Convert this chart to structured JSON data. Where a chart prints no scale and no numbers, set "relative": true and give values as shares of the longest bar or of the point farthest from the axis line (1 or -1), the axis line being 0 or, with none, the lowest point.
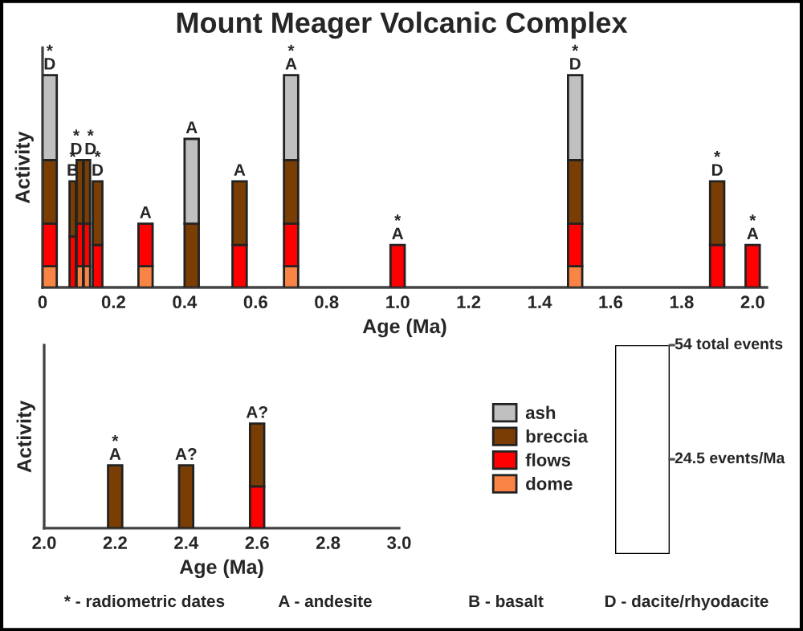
{
  "chart_data": [
    {
      "type": "bar",
      "title": "Mount Meager Volcanic Complex",
      "xlabel": "Age (Ma)",
      "ylabel": "Activity",
      "relative": true,
      "stacked": true,
      "tick_labels": "x",
      "grid": false,
      "legend": "bottom",
      "x": [
        0.02,
        0.085,
        0.105,
        0.125,
        0.155,
        0.29,
        0.42,
        0.555,
        0.7,
        1.0,
        1.5,
        1.9,
        2.0
      ],
      "xlim": [
        0,
        2.04
      ],
      "xticks": [
        {
          "value": 0,
          "label": "0"
        },
        0.2,
        0.4,
        0.6,
        0.8,
        {
          "value": 1,
          "label": "1.0"
        },
        1.2,
        1.4,
        1.6,
        1.8,
        {
          "value": 2,
          "label": "2.0"
        }
      ],
      "series": [
        {
          "name": "dome",
          "color": "#f98446",
          "values": [
            0.1,
            null,
            0.1,
            0.1,
            null,
            0.1,
            null,
            null,
            0.1,
            null,
            0.1,
            null,
            null
          ]
        },
        {
          "name": "flows",
          "color": "#ff0000",
          "values": [
            0.2,
            0.24,
            0.2,
            0.2,
            0.2,
            0.2,
            null,
            0.2,
            0.2,
            0.2,
            0.2,
            0.2,
            0.2
          ]
        },
        {
          "name": "breccia",
          "color": "#7a3e05",
          "values": [
            0.3,
            0.26,
            0.3,
            0.3,
            0.3,
            null,
            0.3,
            0.3,
            0.3,
            null,
            0.3,
            0.3,
            null
          ]
        },
        {
          "name": "ash",
          "color": "#c0c0c0",
          "values": [
            0.4,
            null,
            null,
            null,
            null,
            null,
            0.4,
            null,
            0.4,
            null,
            0.4,
            null,
            null
          ]
        }
      ],
      "annotations": [
        {
          "text": "*\nD",
          "x": 0.02,
          "y": 1.0
        },
        {
          "text": "*\nB",
          "x": 0.085,
          "y": 0.5
        },
        {
          "text": "*\nD",
          "x": 0.105,
          "y": 0.6
        },
        {
          "text": "*\nD",
          "x": 0.125,
          "y": 0.6
        },
        {
          "text": "*\nD",
          "x": 0.155,
          "y": 0.5
        },
        {
          "text": "A",
          "x": 0.29,
          "y": 0.3
        },
        {
          "text": "A",
          "x": 0.42,
          "y": 0.7
        },
        {
          "text": "A",
          "x": 0.555,
          "y": 0.5
        },
        {
          "text": "*\nA",
          "x": 0.7,
          "y": 1.0
        },
        {
          "text": "*\nA",
          "x": 1.0,
          "y": 0.2
        },
        {
          "text": "*\nD",
          "x": 1.5,
          "y": 1.0
        },
        {
          "text": "*\nD",
          "x": 1.9,
          "y": 0.5
        },
        {
          "text": "*\nA",
          "x": 2.0,
          "y": 0.2
        },
        "* - radiometric dates",
        "A - andesite",
        "B - basalt",
        "D - dacite/rhyodacite"
      ]
    },
    {
      "type": "bar",
      "xlabel": "Age (Ma)",
      "ylabel": "Activity",
      "relative": true,
      "stacked": true,
      "tick_labels": "x",
      "grid": false,
      "legend": false,
      "x": [
        2.2,
        2.4,
        2.6
      ],
      "xlim": [
        2.0,
        3.0
      ],
      "xticks": [
        {
          "value": 2,
          "label": "2.0"
        },
        2.2,
        2.4,
        2.6,
        2.8,
        {
          "value": 3,
          "label": "3.0"
        }
      ],
      "series": [
        {
          "color": "#ff0000",
          "values": [
            null,
            null,
            0.4
          ]
        },
        {
          "color": "#7a3e05",
          "values": [
            0.6,
            0.6,
            0.6
          ]
        }
      ],
      "annotations": [
        {
          "text": "*\nA",
          "x": 2.2,
          "y": 0.6
        },
        {
          "text": "A?",
          "x": 2.4,
          "y": 0.6
        },
        {
          "text": "A?",
          "x": 2.6,
          "y": 1.0
        }
      ]
    },
    {
      "type": "other",
      "categories": [
        null,
        null
      ],
      "values": [
        54,
        24.5
      ],
      "colors": [
        "#ffffff",
        "#ffffff"
      ],
      "value_labels": [
        "54 total events",
        "24.5 events/Ma"
      ]
    }
  ]
}
